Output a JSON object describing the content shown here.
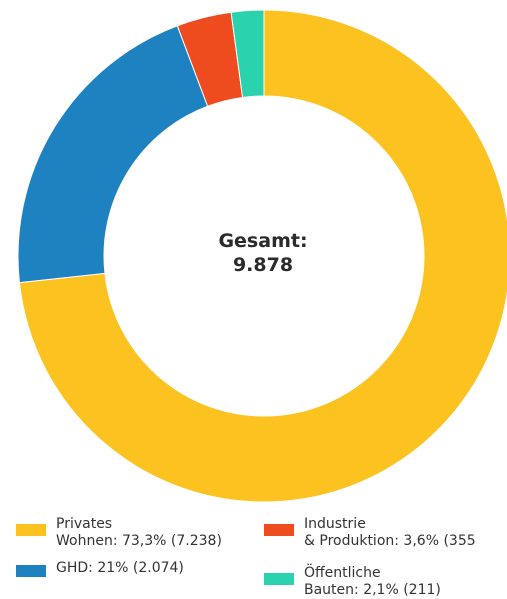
{
  "chart_data": {
    "type": "pie",
    "categories": [
      "Privates\nWohnen: 73,3% (7.238)",
      "Industrie\n& Produktion: 3,6% (355",
      "GHD: 21% (2.074)",
      "Öffentliche\nBauten: 2,1% (211)"
    ],
    "values": [
      7238,
      355,
      2074,
      211
    ],
    "colors": [
      "#FCC21F",
      "#EE4B1E",
      "#1F82C0",
      "#2AD2AE"
    ],
    "center_label": "Gesamt:",
    "center_value": "9.878",
    "legend_position": "bottom"
  }
}
